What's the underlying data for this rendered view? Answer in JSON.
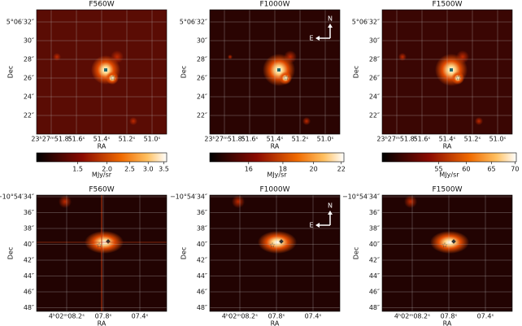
{
  "panels": [
    {
      "title": "F560W",
      "xlabel": "RA",
      "ylabel": "Dec",
      "xticks": [
        "23ʰ27ᵐ51.8ˢ",
        "51.6ˢ",
        "51.4ˢ",
        "51.2ˢ",
        "51.0ˢ"
      ],
      "yticks": [
        "5°06′32″",
        "30″",
        "28″",
        "26″",
        "24″",
        "22″"
      ]
    },
    {
      "title": "F1000W",
      "xlabel": "RA",
      "ylabel": "Dec",
      "xticks": [
        "23ʰ27ᵐ51.8ˢ",
        "51.6ˢ",
        "51.4ˢ",
        "51.2ˢ",
        "51.0ˢ"
      ],
      "yticks": [
        "5°06′32″",
        "30″",
        "28″",
        "26″",
        "24″",
        "22″"
      ]
    },
    {
      "title": "F1500W",
      "xlabel": "RA",
      "ylabel": "Dec",
      "xticks": [
        "23ʰ27ᵐ51.8ˢ",
        "51.6ˢ",
        "51.4ˢ",
        "51.2ˢ",
        "51.0ˢ"
      ],
      "yticks": [
        "5°06′32″",
        "30″",
        "28″",
        "26″",
        "24″",
        "22″"
      ]
    },
    {
      "title": "F560W",
      "xlabel": "RA",
      "ylabel": "Dec",
      "xticks": [
        "4ʰ02ᵐ08.2ˢ",
        "07.8ˢ",
        "07.4ˢ"
      ],
      "yticks": [
        "−10°54′34″",
        "36″",
        "38″",
        "40″",
        "42″",
        "44″",
        "46″",
        "48″"
      ]
    },
    {
      "title": "F1000W",
      "xlabel": "RA",
      "ylabel": "Dec",
      "xticks": [
        "4ʰ02ᵐ08.2ˢ",
        "07.8ˢ",
        "07.4ˢ"
      ],
      "yticks": [
        "−10°54′34″",
        "36″",
        "38″",
        "40″",
        "42″",
        "44″",
        "46″",
        "48″"
      ]
    },
    {
      "title": "F1500W",
      "xlabel": "RA",
      "ylabel": "Dec",
      "xticks": [
        "4ʰ02ᵐ08.2ˢ",
        "07.8ˢ",
        "07.4ˢ"
      ],
      "yticks": [
        "−10°54′34″",
        "36″",
        "38″",
        "40″",
        "42″",
        "44″",
        "46″",
        "48″"
      ]
    }
  ],
  "colorbars": [
    {
      "label": "MJy/sr",
      "lim": [
        1,
        3.6
      ],
      "log": true,
      "ticks": [
        1.5,
        {
          "value": 2,
          "label": "2.0"
        },
        2.5,
        {
          "value": 3,
          "label": "3.0"
        },
        3.5
      ]
    },
    {
      "label": "MJy/sr",
      "lim": [
        14,
        22.2
      ],
      "log": true,
      "ticks": [
        16,
        18,
        20,
        22
      ]
    },
    {
      "label": "MJy/sr",
      "lim": [
        46,
        70.3
      ],
      "log": true,
      "ticks": [
        55,
        60,
        65,
        70
      ]
    }
  ],
  "compass": {
    "north": "N",
    "east": "E"
  }
}
